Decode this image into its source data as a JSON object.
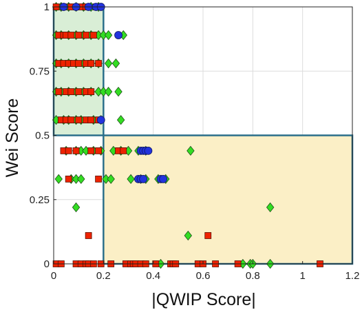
{
  "chart_data": {
    "type": "scatter",
    "xlabel": "|QWIP Score|",
    "ylabel": "Wei Score",
    "xlim": [
      0,
      1.2
    ],
    "ylim": [
      0,
      1
    ],
    "xticks": [
      0,
      0.2,
      0.4,
      0.6,
      0.8,
      1,
      1.2
    ],
    "xtick_labels": [
      "0",
      "0.2",
      "0.4",
      "0.6",
      "0.8",
      "1",
      "1.2"
    ],
    "yticks": [
      0,
      0.25,
      0.5,
      0.75,
      1
    ],
    "ytick_labels": [
      "0",
      "0.25",
      "0.5",
      "0.75",
      "1"
    ],
    "grid": true,
    "colors": {
      "green": "#33dd22",
      "red": "#ee2200",
      "blue": "#2233dd",
      "region_upper_left_fill": "#d9eed6",
      "region_lower_right_fill": "#fbefc6",
      "region_border": "#2a6f8a"
    },
    "regions": [
      {
        "name": "upper-left-region",
        "x": [
          0,
          0.2
        ],
        "y": [
          0.5,
          1
        ],
        "color": "#d9eed6"
      },
      {
        "name": "lower-right-region",
        "x": [
          0.2,
          1.2
        ],
        "y": [
          0,
          0.5
        ],
        "color": "#fbefc6"
      }
    ],
    "series": [
      {
        "marker": "diamond",
        "color": "#33dd22",
        "points": [
          [
            0.01,
            1
          ],
          [
            0.03,
            1
          ],
          [
            0.06,
            1
          ],
          [
            0.09,
            1
          ],
          [
            0.12,
            1
          ],
          [
            0.15,
            1
          ],
          [
            0.18,
            1
          ],
          [
            0.01,
            0.89
          ],
          [
            0.03,
            0.89
          ],
          [
            0.06,
            0.89
          ],
          [
            0.09,
            0.89
          ],
          [
            0.12,
            0.89
          ],
          [
            0.15,
            0.89
          ],
          [
            0.18,
            0.89
          ],
          [
            0.2,
            0.89
          ],
          [
            0.22,
            0.89
          ],
          [
            0.28,
            0.89
          ],
          [
            0.01,
            0.78
          ],
          [
            0.03,
            0.78
          ],
          [
            0.06,
            0.78
          ],
          [
            0.09,
            0.78
          ],
          [
            0.12,
            0.78
          ],
          [
            0.15,
            0.78
          ],
          [
            0.18,
            0.78
          ],
          [
            0.22,
            0.78
          ],
          [
            0.25,
            0.78
          ],
          [
            0.01,
            0.67
          ],
          [
            0.03,
            0.67
          ],
          [
            0.06,
            0.67
          ],
          [
            0.09,
            0.67
          ],
          [
            0.12,
            0.67
          ],
          [
            0.15,
            0.67
          ],
          [
            0.18,
            0.67
          ],
          [
            0.2,
            0.67
          ],
          [
            0.22,
            0.67
          ],
          [
            0.26,
            0.67
          ],
          [
            0.01,
            0.56
          ],
          [
            0.04,
            0.56
          ],
          [
            0.06,
            0.56
          ],
          [
            0.09,
            0.56
          ],
          [
            0.11,
            0.56
          ],
          [
            0.16,
            0.56
          ],
          [
            0.19,
            0.56
          ],
          [
            0.27,
            0.56
          ],
          [
            0.05,
            0.44
          ],
          [
            0.09,
            0.44
          ],
          [
            0.11,
            0.44
          ],
          [
            0.13,
            0.44
          ],
          [
            0.16,
            0.44
          ],
          [
            0.19,
            0.44
          ],
          [
            0.24,
            0.44
          ],
          [
            0.27,
            0.44
          ],
          [
            0.3,
            0.44
          ],
          [
            0.34,
            0.44
          ],
          [
            0.37,
            0.44
          ],
          [
            0.55,
            0.44
          ],
          [
            0.02,
            0.33
          ],
          [
            0.07,
            0.33
          ],
          [
            0.09,
            0.33
          ],
          [
            0.11,
            0.33
          ],
          [
            0.21,
            0.33
          ],
          [
            0.23,
            0.33
          ],
          [
            0.31,
            0.33
          ],
          [
            0.35,
            0.33
          ],
          [
            0.37,
            0.33
          ],
          [
            0.42,
            0.33
          ],
          [
            0.45,
            0.33
          ],
          [
            0.09,
            0.22
          ],
          [
            0.87,
            0.22
          ],
          [
            0.54,
            0.11
          ],
          [
            0.43,
            0
          ],
          [
            0.76,
            0
          ],
          [
            0.79,
            0
          ],
          [
            0.8,
            0
          ],
          [
            0.87,
            0
          ]
        ]
      },
      {
        "marker": "square",
        "color": "#ee2200",
        "points": [
          [
            0.01,
            1
          ],
          [
            0.04,
            1
          ],
          [
            0.07,
            1
          ],
          [
            0.11,
            1
          ],
          [
            0.13,
            1
          ],
          [
            0.17,
            1
          ],
          [
            0.02,
            0.89
          ],
          [
            0.04,
            0.89
          ],
          [
            0.05,
            0.89
          ],
          [
            0.07,
            0.89
          ],
          [
            0.1,
            0.89
          ],
          [
            0.13,
            0.89
          ],
          [
            0.16,
            0.89
          ],
          [
            0.02,
            0.78
          ],
          [
            0.04,
            0.78
          ],
          [
            0.06,
            0.78
          ],
          [
            0.08,
            0.78
          ],
          [
            0.1,
            0.78
          ],
          [
            0.13,
            0.78
          ],
          [
            0.15,
            0.78
          ],
          [
            0.18,
            0.78
          ],
          [
            0.02,
            0.67
          ],
          [
            0.05,
            0.67
          ],
          [
            0.07,
            0.67
          ],
          [
            0.1,
            0.67
          ],
          [
            0.13,
            0.67
          ],
          [
            0.15,
            0.67
          ],
          [
            0.03,
            0.56
          ],
          [
            0.05,
            0.56
          ],
          [
            0.07,
            0.56
          ],
          [
            0.1,
            0.56
          ],
          [
            0.13,
            0.56
          ],
          [
            0.15,
            0.56
          ],
          [
            0.18,
            0.56
          ],
          [
            0.04,
            0.44
          ],
          [
            0.06,
            0.44
          ],
          [
            0.09,
            0.44
          ],
          [
            0.15,
            0.44
          ],
          [
            0.18,
            0.44
          ],
          [
            0.26,
            0.44
          ],
          [
            0.28,
            0.44
          ],
          [
            0.06,
            0.33
          ],
          [
            0.18,
            0.33
          ],
          [
            0.14,
            0.11
          ],
          [
            0.62,
            0.11
          ],
          [
            0.01,
            0
          ],
          [
            0.03,
            0
          ],
          [
            0.09,
            0
          ],
          [
            0.11,
            0
          ],
          [
            0.13,
            0
          ],
          [
            0.14,
            0
          ],
          [
            0.16,
            0
          ],
          [
            0.19,
            0
          ],
          [
            0.23,
            0
          ],
          [
            0.29,
            0
          ],
          [
            0.31,
            0
          ],
          [
            0.32,
            0
          ],
          [
            0.33,
            0
          ],
          [
            0.35,
            0
          ],
          [
            0.37,
            0
          ],
          [
            0.41,
            0
          ],
          [
            0.47,
            0
          ],
          [
            0.48,
            0
          ],
          [
            0.49,
            0
          ],
          [
            0.58,
            0
          ],
          [
            0.6,
            0
          ],
          [
            0.65,
            0
          ],
          [
            0.74,
            0
          ],
          [
            1.07,
            0
          ]
        ]
      },
      {
        "marker": "circle",
        "color": "#2233dd",
        "points": [
          [
            0.04,
            1
          ],
          [
            0.09,
            1
          ],
          [
            0.14,
            1
          ],
          [
            0.17,
            1
          ],
          [
            0.19,
            1
          ],
          [
            0.26,
            0.89
          ],
          [
            0.19,
            0.56
          ],
          [
            0.35,
            0.44
          ],
          [
            0.36,
            0.44
          ],
          [
            0.37,
            0.44
          ],
          [
            0.38,
            0.44
          ],
          [
            0.34,
            0.33
          ],
          [
            0.35,
            0.33
          ],
          [
            0.36,
            0.33
          ],
          [
            0.43,
            0.33
          ],
          [
            0.44,
            0.33
          ]
        ]
      }
    ]
  }
}
